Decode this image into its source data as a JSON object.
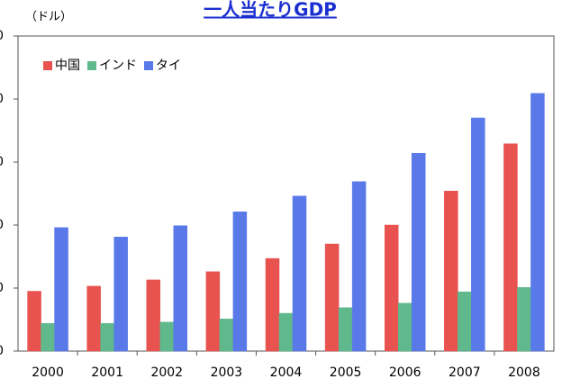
{
  "chart_data": {
    "type": "bar",
    "title": "一人当たりGDP",
    "y_label": "（ドル）",
    "categories": [
      "2000",
      "2001",
      "2002",
      "2003",
      "2004",
      "2005",
      "2006",
      "2007",
      "2008"
    ],
    "series": [
      {
        "name": "中国",
        "color": "#e8524f",
        "values": [
          950,
          1030,
          1130,
          1260,
          1470,
          1700,
          2000,
          2540,
          3290
        ]
      },
      {
        "name": "インド",
        "color": "#5fb98c",
        "values": [
          440,
          440,
          460,
          510,
          600,
          690,
          760,
          940,
          1010
        ]
      },
      {
        "name": "タイ",
        "color": "#5a79e8",
        "values": [
          1960,
          1810,
          1990,
          2210,
          2460,
          2690,
          3140,
          3700,
          4090
        ]
      }
    ],
    "ylim": [
      0,
      5000
    ],
    "yticks": [
      0,
      1000,
      2000,
      3000,
      4000,
      5000
    ],
    "legend": "top-left"
  }
}
